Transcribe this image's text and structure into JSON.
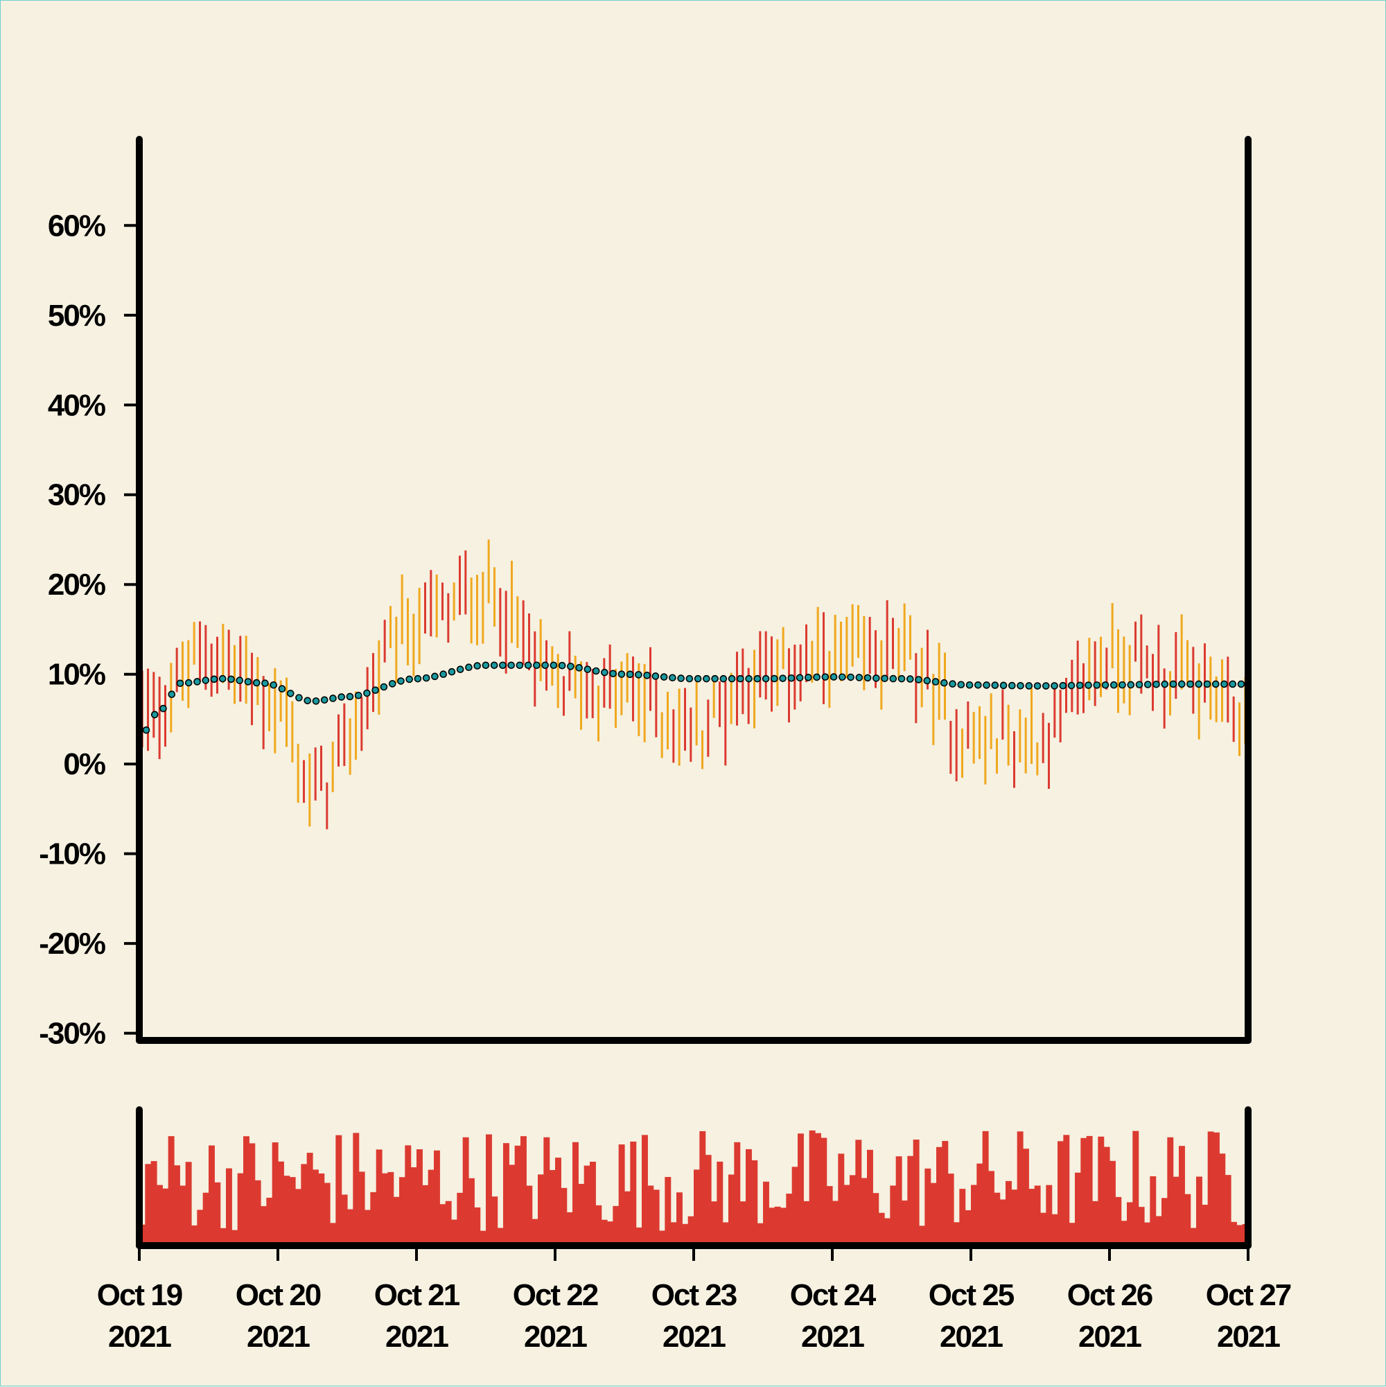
{
  "chart_data": {
    "type": "ohlc",
    "panels": [
      "price",
      "volume"
    ],
    "y_axis": {
      "ticks": [
        "-30%",
        "-20%",
        "-10%",
        "0%",
        "10%",
        "20%",
        "30%",
        "40%",
        "50%",
        "60%"
      ],
      "tick_values": [
        -30,
        -20,
        -10,
        0,
        10,
        20,
        30,
        40,
        50,
        60
      ],
      "range": [
        -30.8,
        69.6
      ],
      "unit": "%"
    },
    "x_axis": {
      "range": [
        "2021-10-19T00:00",
        "2021-10-27T00:00"
      ],
      "ticks": [
        {
          "date": "Oct 19",
          "year": "2021"
        },
        {
          "date": "Oct 20",
          "year": "2021"
        },
        {
          "date": "Oct 21",
          "year": "2021"
        },
        {
          "date": "Oct 22",
          "year": "2021"
        },
        {
          "date": "Oct 23",
          "year": "2021"
        },
        {
          "date": "Oct 24",
          "year": "2021"
        },
        {
          "date": "Oct 25",
          "year": "2021"
        },
        {
          "date": "Oct 26",
          "year": "2021"
        },
        {
          "date": "Oct 27",
          "year": "2021"
        }
      ]
    },
    "bar_interval_hours": 1,
    "bar_count": 192,
    "colors": {
      "background": "#f6f1e1",
      "up": "#f0a81e",
      "down": "#dc3a30",
      "moving_average": "#1a9aa0",
      "axis": "#000000"
    },
    "trend_anchors": {
      "x_day": [
        0,
        0.5,
        1.0,
        1.25,
        2.0,
        2.5,
        3.0,
        3.5,
        4.0,
        4.5,
        5.0,
        5.5,
        6.0,
        6.5,
        7.0,
        7.5,
        8.0
      ],
      "value": [
        5,
        12,
        7,
        -3,
        16,
        19,
        9,
        8,
        4,
        10,
        12,
        12,
        3,
        3,
        12,
        10,
        5
      ]
    },
    "moving_average_anchors": {
      "x_day": [
        0,
        0.15,
        0.3,
        0.6,
        0.9,
        1.25,
        1.5,
        2.0,
        2.5,
        3.0,
        3.5,
        4.0,
        4.5,
        5.0,
        5.5,
        6.0,
        6.5,
        7.0,
        7.5,
        8.0
      ],
      "value": [
        3,
        6,
        9,
        9.5,
        9,
        7,
        7.5,
        9.5,
        11,
        11,
        10,
        9.5,
        9.5,
        9.7,
        9.5,
        8.8,
        8.7,
        8.8,
        8.9,
        8.9
      ]
    },
    "grid": false,
    "legend": "none"
  }
}
